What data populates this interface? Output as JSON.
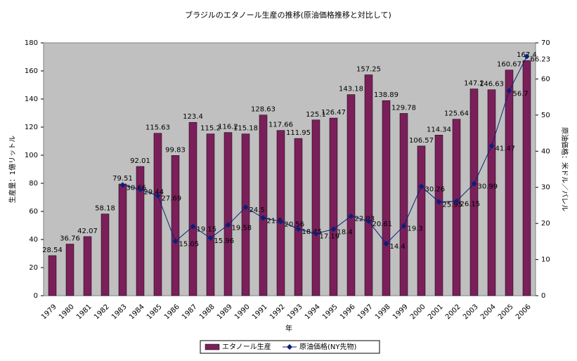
{
  "chart_data": {
    "type": "bar",
    "title": "ブラジルのエタノール生産の推移(原油価格推移と対比して)",
    "x_label": "年",
    "y_label": "生産量：1億リットル",
    "y2_label": "原油価格：米ドル／バレル",
    "categories": [
      "1979",
      "1980",
      "1981",
      "1982",
      "1983",
      "1984",
      "1985",
      "1986",
      "1987",
      "1988",
      "1989",
      "1990",
      "1991",
      "1992",
      "1993",
      "1994",
      "1995",
      "1996",
      "1997",
      "1998",
      "1999",
      "2000",
      "2001",
      "2002",
      "2003",
      "2004",
      "2005",
      "2006"
    ],
    "series": [
      {
        "name": "エタノール生産",
        "type": "bar",
        "color": "#7b1f5a",
        "values": [
          28.54,
          36.76,
          42.07,
          58.18,
          79.51,
          92.01,
          115.63,
          99.83,
          123.4,
          115.2,
          116.2,
          115.18,
          128.63,
          117.66,
          111.95,
          125.1,
          126.47,
          143.18,
          157.25,
          138.89,
          129.78,
          106.57,
          114.34,
          125.64,
          147.2,
          146.63,
          160.67,
          167.4
        ]
      },
      {
        "name": "原油価格(NY先物)",
        "type": "line",
        "axis": "y2",
        "color": "#0a1f7a",
        "values": [
          null,
          null,
          null,
          null,
          30.66,
          29.44,
          27.69,
          15.05,
          19.15,
          15.96,
          19.58,
          24.5,
          21.5,
          20.56,
          18.45,
          17.19,
          18.4,
          22.03,
          20.61,
          14.4,
          19.3,
          30.26,
          25.95,
          26.15,
          30.99,
          41.47,
          56.7,
          66.23
        ]
      }
    ],
    "ylim": [
      0,
      180
    ],
    "yticks": [
      0,
      20,
      40,
      60,
      80,
      100,
      120,
      140,
      160,
      180
    ],
    "y2lim": [
      0,
      70
    ],
    "y2ticks": [
      0,
      10,
      20,
      30,
      40,
      50,
      60,
      70
    ],
    "legend": "bottom"
  }
}
